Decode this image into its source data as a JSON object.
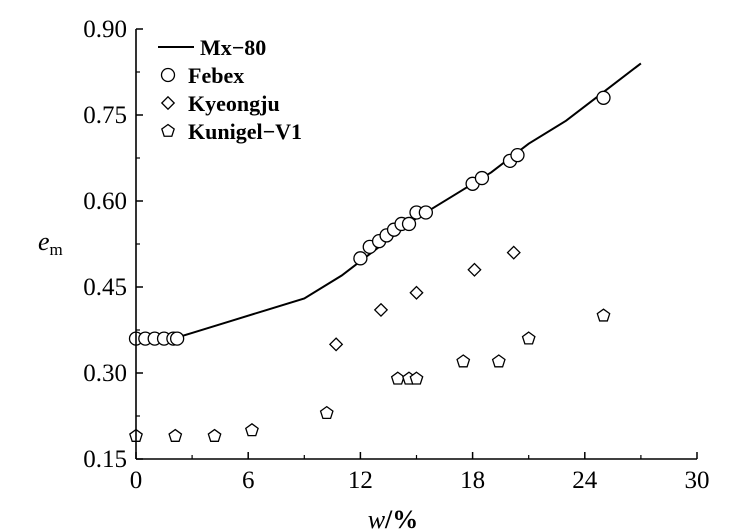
{
  "chart_data": {
    "type": "scatter",
    "xlabel": "w/%",
    "ylabel": "e_m",
    "xlim": [
      0,
      30
    ],
    "ylim": [
      0.15,
      0.9
    ],
    "xticks": [
      "0",
      "6",
      "12",
      "18",
      "24",
      "30"
    ],
    "yticks": [
      "0.15",
      "0.30",
      "0.45",
      "0.60",
      "0.75",
      "0.90"
    ],
    "legend_position": "top-left",
    "grid": false,
    "series": [
      {
        "name": "Mx−80",
        "kind": "line",
        "x": [
          0,
          1,
          2,
          3,
          5,
          7,
          9,
          11,
          13,
          15,
          17,
          19,
          21,
          23,
          25,
          27
        ],
        "y": [
          0.36,
          0.36,
          0.36,
          0.37,
          0.39,
          0.41,
          0.43,
          0.47,
          0.52,
          0.57,
          0.61,
          0.65,
          0.7,
          0.74,
          0.79,
          0.84
        ]
      },
      {
        "name": "Febex",
        "kind": "circle",
        "x": [
          0,
          0.5,
          1,
          1.5,
          2,
          2.2,
          12,
          12.5,
          13,
          13.4,
          13.8,
          14.2,
          14.6,
          15,
          15.5,
          18,
          18.5,
          20,
          20.4,
          25
        ],
        "y": [
          0.36,
          0.36,
          0.36,
          0.36,
          0.36,
          0.36,
          0.5,
          0.52,
          0.53,
          0.54,
          0.55,
          0.56,
          0.56,
          0.58,
          0.58,
          0.63,
          0.64,
          0.67,
          0.68,
          0.78
        ]
      },
      {
        "name": "Kyeongju",
        "kind": "diamond",
        "x": [
          10.7,
          13.1,
          15,
          18.1,
          20.2
        ],
        "y": [
          0.35,
          0.41,
          0.44,
          0.48,
          0.51
        ]
      },
      {
        "name": "Kunigel−V1",
        "kind": "pentagon",
        "x": [
          0,
          2.1,
          4.2,
          6.2,
          10.2,
          14,
          14.6,
          15,
          17.5,
          19.4,
          21,
          25
        ],
        "y": [
          0.19,
          0.19,
          0.19,
          0.2,
          0.23,
          0.29,
          0.29,
          0.29,
          0.32,
          0.32,
          0.36,
          0.4
        ]
      }
    ]
  }
}
